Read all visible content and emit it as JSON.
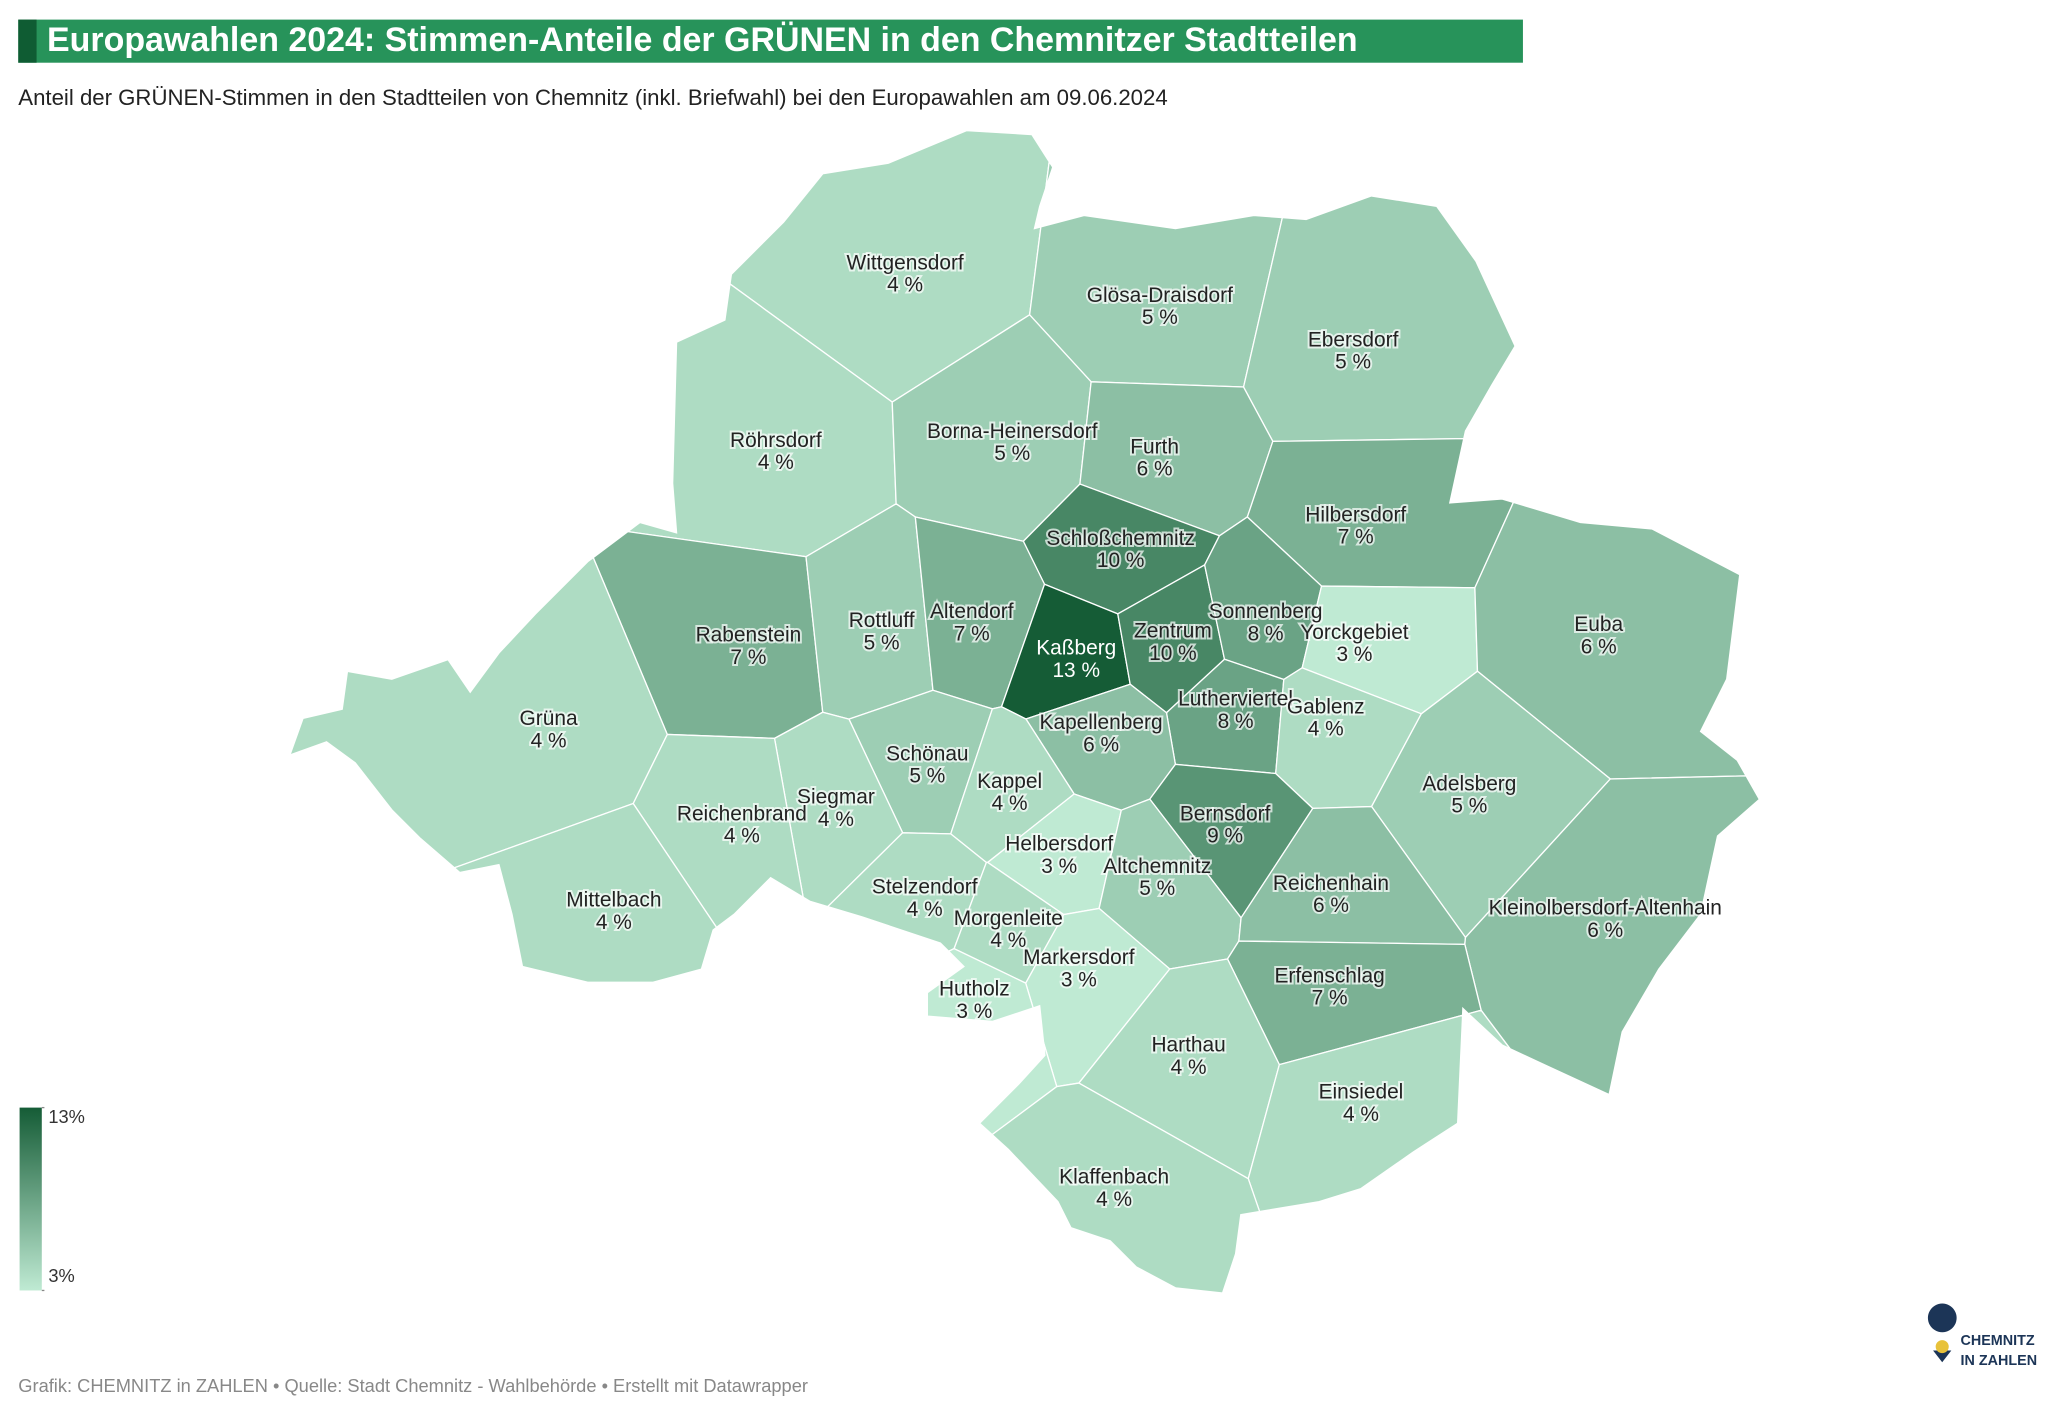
{
  "chart_data": {
    "type": "choropleth",
    "title": "Europawahlen 2024: Stimmen-Anteile der GRÜNEN in den Chemnitzer Stadtteilen",
    "subtitle": "Anteil der GRÜNEN-Stimmen in den Stadtteilen von Chemnitz (inkl. Briefwahl) bei den Europawahlen am 09.06.2024",
    "regions": [
      "Wittgensdorf",
      "Glösa-Draisdorf",
      "Ebersdorf",
      "Röhrsdorf",
      "Borna-Heinersdorf",
      "Furth",
      "Hilbersdorf",
      "Schloßchemnitz",
      "Rabenstein",
      "Rottluff",
      "Altendorf",
      "Kaßberg",
      "Zentrum",
      "Sonnenberg",
      "Yorckgebiet",
      "Euba",
      "Lutherviertel",
      "Gablenz",
      "Kapellenberg",
      "Grüna",
      "Schönau",
      "Kappel",
      "Siegmar",
      "Reichenbrand",
      "Adelsberg",
      "Bernsdorf",
      "Helbersdorf",
      "Altchemnitz",
      "Reichenhain",
      "Stelzendorf",
      "Mittelbach",
      "Kleinolbersdorf-Altenhain",
      "Morgenleite",
      "Markersdorf",
      "Erfenschlag",
      "Hutholz",
      "Harthau",
      "Einsiedel",
      "Klaffenbach"
    ],
    "values": [
      4,
      5,
      5,
      4,
      5,
      6,
      7,
      10,
      7,
      5,
      7,
      13,
      10,
      8,
      3,
      6,
      8,
      4,
      6,
      4,
      5,
      4,
      4,
      4,
      5,
      9,
      3,
      5,
      6,
      4,
      4,
      6,
      4,
      3,
      7,
      3,
      4,
      4,
      4
    ],
    "value_labels": [
      "4 %",
      "5 %",
      "5 %",
      "4 %",
      "5 %",
      "6 %",
      "7 %",
      "10 %",
      "7 %",
      "5 %",
      "7 %",
      "13 %",
      "10 %",
      "8 %",
      "3 %",
      "6 %",
      "8 %",
      "4 %",
      "6 %",
      "4 %",
      "5 %",
      "4 %",
      "4 %",
      "4 %",
      "5 %",
      "9 %",
      "3 %",
      "5 %",
      "6 %",
      "4 %",
      "4 %",
      "6 %",
      "4 %",
      "3 %",
      "7 %",
      "3 %",
      "4 %",
      "4 %",
      "4 %"
    ],
    "color_range": [
      "#bfead3",
      "#155c36"
    ],
    "clim": [
      3,
      13
    ],
    "legend_ticks": [
      {
        "value": 13,
        "label": "13%"
      },
      {
        "value": 3,
        "label": "3%"
      }
    ]
  },
  "footer": "Grafik: CHEMNITZ in ZAHLEN • Quelle: Stadt Chemnitz - Wahlbehörde • Erstellt mit Datawrapper",
  "logo": [
    "CHEMNITZ",
    "IN ZAHLEN"
  ]
}
